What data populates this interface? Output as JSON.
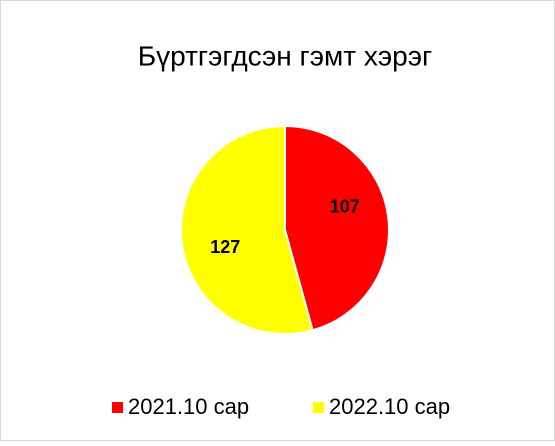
{
  "chart_data": {
    "type": "pie",
    "title": "Бүртгэгдсэн гэмт хэрэг",
    "categories": [
      "2021.10 сар",
      "2022.10 сар"
    ],
    "values": [
      107,
      127
    ],
    "colors": [
      "#ff0000",
      "#ffff00"
    ],
    "legend": "bottom"
  }
}
